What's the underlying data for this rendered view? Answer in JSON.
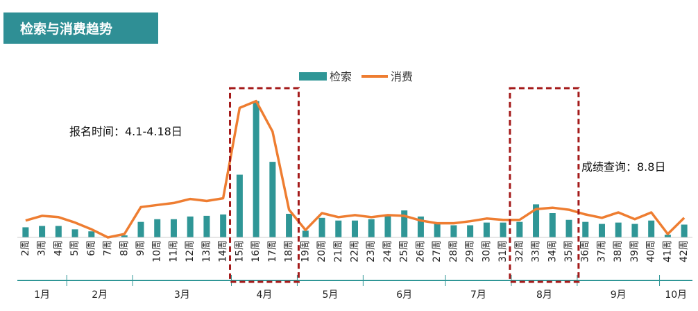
{
  "header": {
    "title": "检索与消费趋势"
  },
  "annotations": {
    "registration": "报名时间：4.1-4.18日",
    "score_query": "成绩查询：8.8日"
  },
  "colors": {
    "bar": "#2f9696",
    "line": "#ee7d31",
    "highlight": "#a41a1a",
    "title_bg": "#2f8f95"
  },
  "chart_data": {
    "type": "bar",
    "title": "",
    "legend": {
      "position": "top-center",
      "entries": [
        "检索",
        "消费"
      ]
    },
    "categories": [
      "2周",
      "3周",
      "4周",
      "5周",
      "6周",
      "7周",
      "8周",
      "9周",
      "10周",
      "11周",
      "12周",
      "13周",
      "14周",
      "15周",
      "16周",
      "17周",
      "18周",
      "19周",
      "20周",
      "21周",
      "22周",
      "23周",
      "24周",
      "25周",
      "26周",
      "27周",
      "28周",
      "29周",
      "30周",
      "31周",
      "32周",
      "33周",
      "34周",
      "35周",
      "36周",
      "37周",
      "38周",
      "39周",
      "40周",
      "41周",
      "42周"
    ],
    "series": [
      {
        "name": "检索",
        "kind": "bar",
        "values": [
          15,
          17,
          17,
          12,
          9,
          0,
          3,
          23,
          27,
          27,
          31,
          32,
          34,
          93,
          202,
          112,
          35,
          10,
          29,
          25,
          25,
          27,
          33,
          40,
          31,
          22,
          18,
          18,
          22,
          22,
          23,
          49,
          36,
          26,
          23,
          20,
          22,
          20,
          25,
          4,
          19
        ]
      },
      {
        "name": "消费",
        "kind": "line",
        "values": [
          25,
          32,
          30,
          22,
          12,
          0,
          5,
          45,
          48,
          51,
          57,
          54,
          58,
          192,
          202,
          157,
          41,
          11,
          36,
          30,
          33,
          30,
          33,
          32,
          25,
          21,
          21,
          24,
          28,
          26,
          26,
          42,
          44,
          41,
          34,
          29,
          37,
          27,
          37,
          5,
          29
        ]
      }
    ],
    "ylim": [
      0,
      215
    ],
    "grid": false,
    "months": [
      {
        "label": "1月",
        "start": 0,
        "end": 2
      },
      {
        "label": "2月",
        "start": 3,
        "end": 6
      },
      {
        "label": "3月",
        "start": 7,
        "end": 12
      },
      {
        "label": "4月",
        "start": 13,
        "end": 16
      },
      {
        "label": "5月",
        "start": 17,
        "end": 20
      },
      {
        "label": "6月",
        "start": 21,
        "end": 25
      },
      {
        "label": "7月",
        "start": 26,
        "end": 29
      },
      {
        "label": "8月",
        "start": 30,
        "end": 33
      },
      {
        "label": "9月",
        "start": 34,
        "end": 38
      },
      {
        "label": "10月",
        "start": 39,
        "end": 40
      }
    ],
    "highlights": [
      {
        "name": "registration-period",
        "start": 13,
        "end": 16
      },
      {
        "name": "score-query-period",
        "start": 30,
        "end": 33
      }
    ]
  }
}
